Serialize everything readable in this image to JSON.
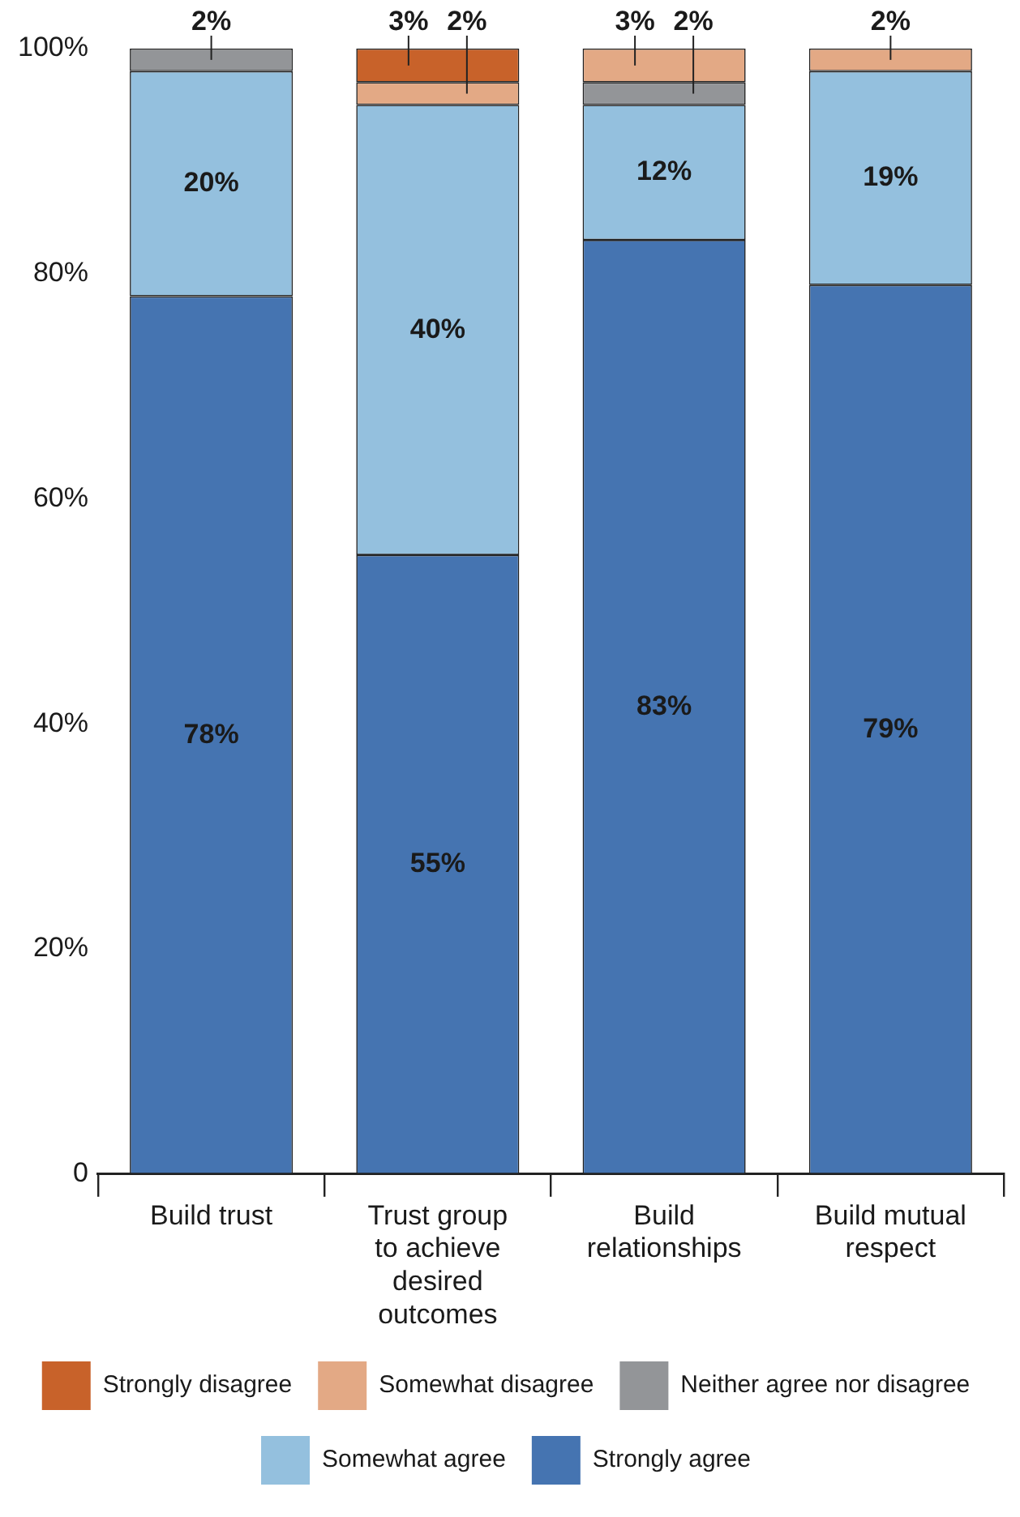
{
  "chart_data": {
    "type": "bar",
    "stacked": true,
    "categories": [
      "Build trust",
      "Trust group to achieve desired outcomes",
      "Build relationships",
      "Build mutual respect"
    ],
    "series": [
      {
        "name": "Strongly agree",
        "color": "#4574b1",
        "values": [
          78,
          55,
          83,
          79
        ],
        "value_labels": [
          "78%",
          "55%",
          "83%",
          "79%"
        ]
      },
      {
        "name": "Somewhat agree",
        "color": "#94c0de",
        "values": [
          20,
          40,
          12,
          19
        ],
        "value_labels": [
          "20%",
          "40%",
          "12%",
          "19%"
        ]
      },
      {
        "name": "Neither agree nor disagree",
        "color": "#939598",
        "values": [
          2,
          null,
          2,
          null
        ],
        "value_labels": [
          "2%",
          null,
          "2%",
          null
        ]
      },
      {
        "name": "Somewhat disagree",
        "color": "#e3a985",
        "values": [
          null,
          2,
          3,
          2
        ],
        "value_labels": [
          null,
          "2%",
          "3%",
          "2%"
        ]
      },
      {
        "name": "Strongly disagree",
        "color": "#c8622a",
        "values": [
          null,
          3,
          null,
          null
        ],
        "value_labels": [
          null,
          "3%",
          null,
          null
        ]
      }
    ],
    "ylim": [
      0,
      100
    ],
    "yticks": [
      0,
      {
        "value": 20,
        "label": "20%"
      },
      {
        "value": 40,
        "label": "40%"
      },
      {
        "value": 60,
        "label": "60%"
      },
      {
        "value": 80,
        "label": "80%"
      },
      {
        "value": 100,
        "label": "100%"
      }
    ],
    "grid": false,
    "legend": "bottom"
  }
}
